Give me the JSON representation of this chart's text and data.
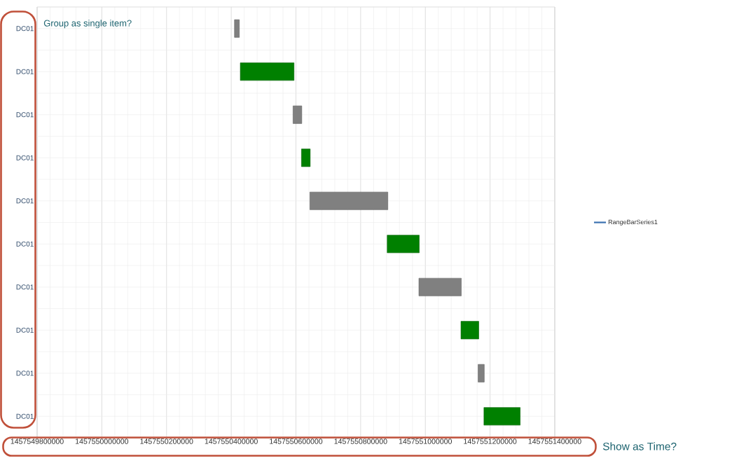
{
  "chart_data": {
    "type": "bar",
    "orientation": "horizontal",
    "categories": [
      "DC01",
      "DC01",
      "DC01",
      "DC01",
      "DC01",
      "DC01",
      "DC01",
      "DC01",
      "DC01",
      "DC01"
    ],
    "series": [
      {
        "name": "RangeBarSeries1",
        "color": "#3a70b0",
        "base": [
          1457550410000,
          1457550428000,
          1457550591000,
          1457550617000,
          1457550643000,
          1457550882000,
          1457550980000,
          1457551110000,
          1457551163000,
          1457551181000
        ],
        "values": [
          15000,
          166000,
          27000,
          27000,
          241000,
          99000,
          131000,
          55000,
          19000,
          112000
        ],
        "colors": [
          "#808080",
          "#008000",
          "#808080",
          "#008000",
          "#808080",
          "#008000",
          "#808080",
          "#008000",
          "#808080",
          "#008000"
        ]
      }
    ],
    "xlim": [
      1457549800000,
      1457551400000
    ],
    "xticks": [
      1457549800000,
      1457550000000,
      1457550200000,
      1457550400000,
      1457550600000,
      1457550800000,
      1457551000000,
      1457551200000,
      1457551400000
    ],
    "grid": true,
    "legend": "right",
    "annotations": [
      "Group as single item?",
      "Show as Time?"
    ]
  }
}
